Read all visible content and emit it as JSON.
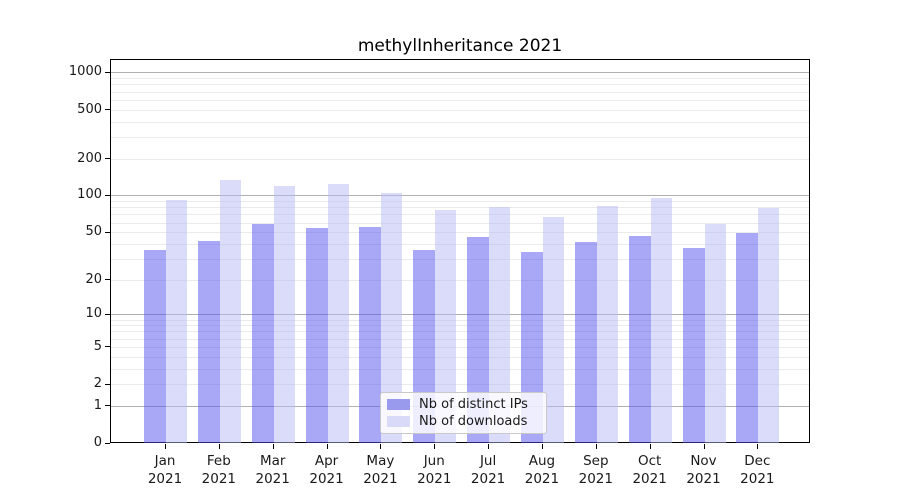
{
  "chart_data": {
    "type": "bar",
    "title": "methylInheritance 2021",
    "categories": [
      "Jan 2021",
      "Feb 2021",
      "Mar 2021",
      "Apr 2021",
      "May 2021",
      "Jun 2021",
      "Jul 2021",
      "Aug 2021",
      "Sep 2021",
      "Oct 2021",
      "Nov 2021",
      "Dec 2021"
    ],
    "series": [
      {
        "name": "Nb of distinct IPs",
        "values": [
          36,
          43,
          59,
          55,
          56,
          36,
          46,
          35,
          42,
          47,
          38,
          50
        ],
        "color": "#9999ee",
        "bar_fill": "rgba(81,81,239,0.5)"
      },
      {
        "name": "Nb of downloads",
        "values": [
          93,
          136,
          121,
          126,
          106,
          78,
          82,
          68,
          84,
          98,
          60,
          81
        ],
        "color": "#d9d9f8",
        "bar_fill": "rgba(183,183,245,0.5)"
      }
    ],
    "yscale": "log10(1+value)",
    "yticks": [
      1000,
      500,
      200,
      100,
      50,
      20,
      10,
      5,
      2,
      1,
      0
    ],
    "ylim": [
      0,
      1300
    ],
    "grid": {
      "major_lines": [
        1,
        10,
        100,
        1000
      ],
      "minor_multiples": [
        2,
        3,
        4,
        5,
        6,
        7,
        8,
        9
      ],
      "major_color": "#b0b0b0",
      "minor_color": "#ebebeb"
    },
    "legend_position": "bottom-center-inside"
  },
  "colors": {
    "axis": "#000000",
    "text": "#1a1a1a",
    "background": "#ffffff"
  }
}
